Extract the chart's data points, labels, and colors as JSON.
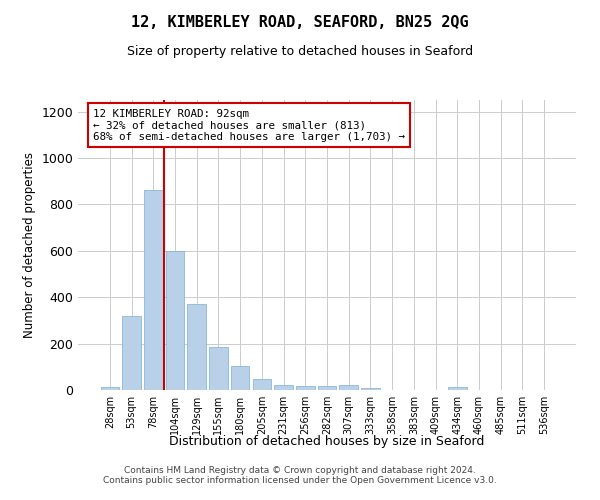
{
  "title": "12, KIMBERLEY ROAD, SEAFORD, BN25 2QG",
  "subtitle": "Size of property relative to detached houses in Seaford",
  "xlabel": "Distribution of detached houses by size in Seaford",
  "ylabel": "Number of detached properties",
  "categories": [
    "28sqm",
    "53sqm",
    "78sqm",
    "104sqm",
    "129sqm",
    "155sqm",
    "180sqm",
    "205sqm",
    "231sqm",
    "256sqm",
    "282sqm",
    "307sqm",
    "333sqm",
    "358sqm",
    "383sqm",
    "409sqm",
    "434sqm",
    "460sqm",
    "485sqm",
    "511sqm",
    "536sqm"
  ],
  "values": [
    15,
    320,
    860,
    600,
    370,
    185,
    105,
    48,
    22,
    18,
    18,
    20,
    10,
    0,
    0,
    0,
    12,
    0,
    0,
    0,
    0
  ],
  "bar_color": "#b8d0e8",
  "bar_edge_color": "#7aafd4",
  "vline_x": 2.5,
  "vline_color": "#cc0000",
  "annotation_text": "12 KIMBERLEY ROAD: 92sqm\n← 32% of detached houses are smaller (813)\n68% of semi-detached houses are larger (1,703) →",
  "annotation_box_color": "#cc0000",
  "ylim": [
    0,
    1250
  ],
  "yticks": [
    0,
    200,
    400,
    600,
    800,
    1000,
    1200
  ],
  "background_color": "#ffffff",
  "grid_color": "#cccccc",
  "footer_line1": "Contains HM Land Registry data © Crown copyright and database right 2024.",
  "footer_line2": "Contains public sector information licensed under the Open Government Licence v3.0."
}
